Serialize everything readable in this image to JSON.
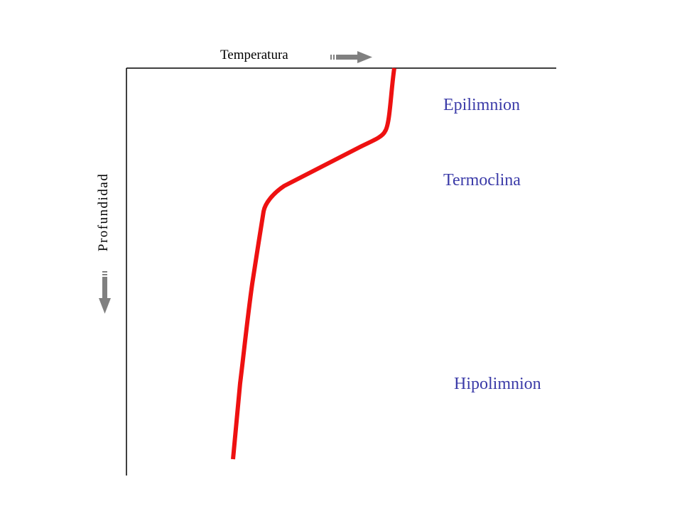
{
  "axes": {
    "x_label": "Temperatura",
    "y_label": "Profundidad",
    "x_arrow_icon": "arrow-right-icon",
    "y_arrow_icon": "arrow-down-icon",
    "axis_color": "#000000",
    "arrow_color": "#808080"
  },
  "zones": [
    {
      "label": "Epilimnion"
    },
    {
      "label": "Termoclina"
    },
    {
      "label": "Hipolimnion"
    }
  ],
  "colors": {
    "profile_curve": "#ee1111",
    "zone_text": "#3b3ba8"
  }
}
